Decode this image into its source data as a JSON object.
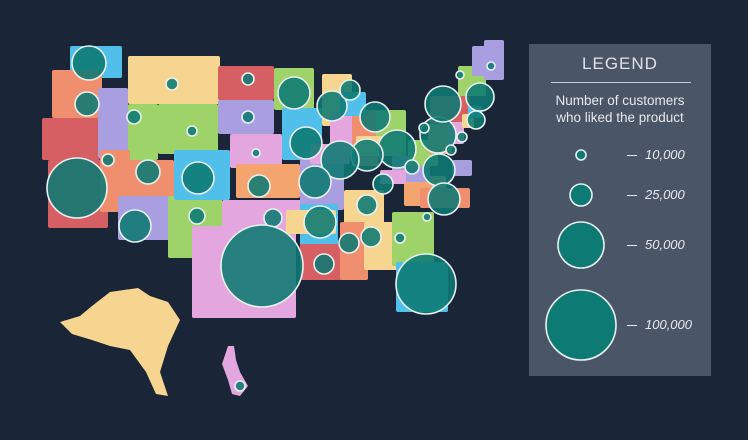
{
  "legend": {
    "title": "LEGEND",
    "subtitle_line1": "Number of customers",
    "subtitle_line2": "who liked the product",
    "entries": [
      {
        "label": "10,000",
        "value": 10000
      },
      {
        "label": "25,000",
        "value": 25000
      },
      {
        "label": "50,000",
        "value": 50000
      },
      {
        "label": "100,000",
        "value": 100000
      }
    ]
  },
  "colors": {
    "background": "#1a2638",
    "bubble_fill": "#0d7a73",
    "bubble_stroke": "#e8f0f0",
    "legend_bg": "#4a5566",
    "state_palette": [
      "#f5d58f",
      "#ef8f6e",
      "#50bfe9",
      "#9ed36a",
      "#e3a6df",
      "#a89ee0",
      "#d65f63",
      "#f4a46f"
    ]
  }
}
